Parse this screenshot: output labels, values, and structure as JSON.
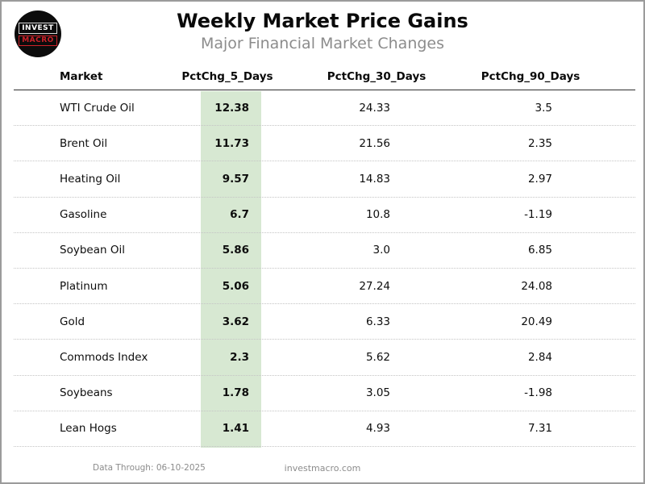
{
  "logo": {
    "line1": "INVEST",
    "line2": "MACRO",
    "red": "#cc2229"
  },
  "header": {
    "title": "Weekly Market Price Gains",
    "subtitle": "Major Financial Market Changes"
  },
  "chart_data": {
    "type": "table",
    "title": "Weekly Market Price Gains",
    "subtitle": "Major Financial Market Changes",
    "columns": [
      "Market",
      "PctChg_5_Days",
      "PctChg_30_Days",
      "PctChg_90_Days"
    ],
    "highlighted_column": "PctChg_5_Days",
    "highlight_color": "#d7e8d2",
    "rows": [
      {
        "market": "WTI Crude Oil",
        "pct_5": "12.38",
        "pct_30": "24.33",
        "pct_90": "3.5"
      },
      {
        "market": "Brent Oil",
        "pct_5": "11.73",
        "pct_30": "21.56",
        "pct_90": "2.35"
      },
      {
        "market": "Heating Oil",
        "pct_5": "9.57",
        "pct_30": "14.83",
        "pct_90": "2.97"
      },
      {
        "market": "Gasoline",
        "pct_5": "6.7",
        "pct_30": "10.8",
        "pct_90": "-1.19"
      },
      {
        "market": "Soybean Oil",
        "pct_5": "5.86",
        "pct_30": "3.0",
        "pct_90": "6.85"
      },
      {
        "market": "Platinum",
        "pct_5": "5.06",
        "pct_30": "27.24",
        "pct_90": "24.08"
      },
      {
        "market": "Gold",
        "pct_5": "3.62",
        "pct_30": "6.33",
        "pct_90": "20.49"
      },
      {
        "market": "Commods Index",
        "pct_5": "2.3",
        "pct_30": "5.62",
        "pct_90": "2.84"
      },
      {
        "market": "Soybeans",
        "pct_5": "1.78",
        "pct_30": "3.05",
        "pct_90": "-1.98"
      },
      {
        "market": "Lean Hogs",
        "pct_5": "1.41",
        "pct_30": "4.93",
        "pct_90": "7.31"
      }
    ]
  },
  "footer": {
    "data_through": "Data Through: 06-10-2025",
    "website": "investmacro.com"
  }
}
